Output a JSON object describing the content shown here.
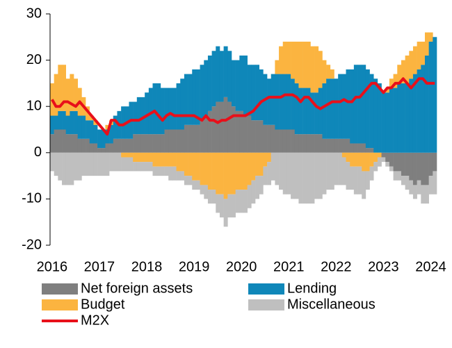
{
  "chart_data": {
    "type": "bar",
    "stacked": true,
    "categories": [
      "2016",
      null,
      null,
      null,
      null,
      null,
      null,
      null,
      null,
      null,
      null,
      null,
      "2017",
      null,
      null,
      null,
      null,
      null,
      null,
      null,
      null,
      null,
      null,
      null,
      "2018",
      null,
      null,
      null,
      null,
      null,
      null,
      null,
      null,
      null,
      null,
      null,
      "2019",
      null,
      null,
      null,
      null,
      null,
      null,
      null,
      null,
      null,
      null,
      null,
      "2020",
      null,
      null,
      null,
      null,
      null,
      null,
      null,
      null,
      null,
      null,
      null,
      "2021",
      null,
      null,
      null,
      null,
      null,
      null,
      null,
      null,
      null,
      null,
      null,
      "2022",
      null,
      null,
      null,
      null,
      null,
      null,
      null,
      null,
      null,
      null,
      null,
      "2023",
      null,
      null,
      null,
      null,
      null,
      null,
      null,
      null,
      null,
      null,
      null,
      "2024",
      null
    ],
    "series": [
      {
        "name": "Net foreign assets",
        "color": "#7f7f7f",
        "values": [
          4,
          5,
          5,
          5,
          4,
          4,
          4,
          3,
          3,
          3,
          2,
          2,
          1,
          1,
          2,
          2,
          3,
          3,
          3,
          3,
          3,
          4,
          4,
          4,
          4,
          4,
          4,
          4,
          4,
          5,
          5,
          5,
          5,
          5,
          6,
          6,
          6,
          6,
          7,
          8,
          9,
          10,
          11,
          11,
          12,
          11,
          10,
          9,
          9,
          8,
          8,
          7,
          7,
          7,
          6,
          6,
          6,
          5,
          5,
          5,
          5,
          5,
          4,
          4,
          4,
          4,
          4,
          4,
          4,
          3,
          3,
          3,
          3,
          3,
          3,
          3,
          2,
          2,
          2,
          2,
          1,
          1,
          0,
          0,
          -1,
          -2,
          -3,
          -4,
          -4,
          -5,
          -5,
          -6,
          -7,
          -6,
          -7,
          -7,
          -5,
          -4
        ]
      },
      {
        "name": "Lending",
        "color": "#0f87b9",
        "values": [
          4,
          3,
          4,
          4,
          4,
          5,
          5,
          5,
          5,
          4,
          5,
          4,
          4,
          4,
          3,
          4,
          5,
          6,
          7,
          7,
          8,
          7,
          8,
          8,
          9,
          10,
          11,
          11,
          10,
          9,
          9,
          9,
          10,
          11,
          11,
          11,
          12,
          12,
          12,
          12,
          12,
          12,
          12,
          11,
          11,
          11,
          10,
          11,
          12,
          13,
          11,
          12,
          12,
          11,
          11,
          10,
          11,
          12,
          12,
          12,
          12,
          11,
          11,
          10,
          10,
          10,
          9,
          9,
          10,
          12,
          13,
          13,
          13,
          14,
          14,
          15,
          16,
          17,
          17,
          17,
          17,
          16,
          16,
          15,
          13,
          13,
          14,
          14,
          15,
          15,
          15,
          16,
          17,
          18,
          19,
          21,
          24,
          25
        ]
      },
      {
        "name": "Budget",
        "color": "#fbb440",
        "values": [
          7,
          9,
          10,
          10,
          8,
          8,
          7,
          6,
          4,
          3,
          1,
          1,
          0,
          0,
          1,
          1,
          0,
          0,
          -1,
          -1,
          -1,
          -2,
          -2,
          -2,
          -2,
          -2,
          -3,
          -3,
          -3,
          -3,
          -3,
          -3,
          -4,
          -4,
          -5,
          -5,
          -6,
          -6,
          -7,
          -7,
          -8,
          -8,
          -9,
          -9,
          -10,
          -9,
          -9,
          -8,
          -8,
          -8,
          -7,
          -6,
          -5,
          -5,
          -3,
          -2,
          0,
          3,
          6,
          7,
          7,
          8,
          9,
          10,
          10,
          10,
          10,
          10,
          8,
          5,
          3,
          2,
          0,
          0,
          -1,
          -2,
          -3,
          -3,
          -3,
          -4,
          -4,
          -3,
          -2,
          -1,
          0,
          1,
          2,
          3,
          4,
          5,
          6,
          6,
          6,
          6,
          5,
          5,
          2,
          0
        ]
      },
      {
        "name": "Miscellaneous",
        "color": "#bfbfbf",
        "values": [
          -4,
          -5,
          -6,
          -7,
          -7,
          -7,
          -6,
          -6,
          -5,
          -5,
          -5,
          -5,
          -5,
          -5,
          -5,
          -4,
          -4,
          -4,
          -3,
          -3,
          -3,
          -2,
          -2,
          -2,
          -2,
          -2,
          -2,
          -2,
          -2,
          -2,
          -3,
          -3,
          -2,
          -2,
          -2,
          -2,
          -2,
          -2,
          -2,
          -3,
          -3,
          -3,
          -4,
          -5,
          -6,
          -5,
          -5,
          -5,
          -5,
          -5,
          -5,
          -5,
          -5,
          -4,
          -4,
          -5,
          -6,
          -7,
          -8,
          -9,
          -9,
          -10,
          -10,
          -11,
          -11,
          -11,
          -11,
          -10,
          -10,
          -9,
          -8,
          -8,
          -7,
          -7,
          -6,
          -6,
          -5,
          -6,
          -6,
          -6,
          -4,
          -3,
          -2,
          -2,
          -1,
          -1,
          -1,
          -2,
          -2,
          -2,
          -3,
          -3,
          -3,
          -3,
          -4,
          -4,
          -4,
          -5
        ]
      },
      {
        "name": "M2X",
        "color": "#e8101a",
        "type": "line",
        "values": [
          11.5,
          10,
          10,
          11,
          11,
          10.5,
          10,
          11,
          10,
          9,
          8,
          7,
          6,
          5,
          4,
          7,
          7,
          6,
          6,
          6.5,
          7,
          7,
          7,
          7.5,
          8,
          8.5,
          9,
          8,
          7,
          8,
          8.5,
          8,
          8,
          8,
          8,
          8,
          8,
          7.5,
          7,
          8,
          7,
          7,
          6.5,
          7,
          7,
          7.5,
          8,
          8,
          8,
          8,
          8.5,
          9,
          10,
          11,
          11.5,
          12,
          12,
          12,
          12,
          12.5,
          12.5,
          12.5,
          12,
          11,
          12,
          12,
          11,
          10,
          9.5,
          10,
          10.5,
          11,
          11,
          11,
          11.5,
          11,
          11,
          12,
          12,
          13,
          14,
          15,
          15,
          14,
          13,
          14,
          14,
          15,
          15,
          16,
          15,
          14,
          15,
          16,
          16,
          15,
          15,
          15
        ]
      }
    ],
    "ylim": [
      -20,
      30
    ],
    "yticks": [
      -20,
      -10,
      0,
      10,
      20,
      30
    ]
  }
}
